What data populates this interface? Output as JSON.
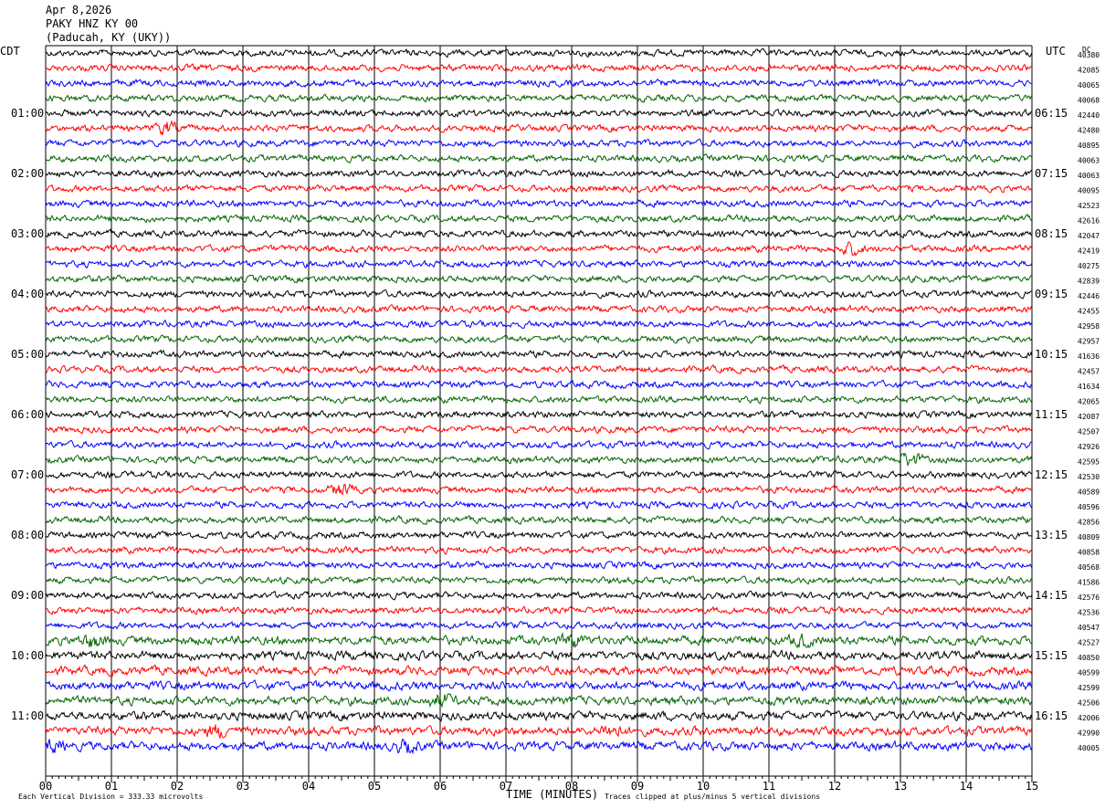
{
  "header": {
    "date": "Apr 8,2026",
    "station": "PAKY HNZ KY 00",
    "location": "(Paducah, KY (UKY))"
  },
  "chart_data": {
    "type": "line",
    "title": "Apr 8,2026",
    "left_timezone": "CDT",
    "right_timezone": "UTC",
    "dc_label": "DC",
    "xlabel": "TIME (MINUTES)",
    "x_ticks": [
      "00",
      "01",
      "02",
      "03",
      "04",
      "05",
      "06",
      "07",
      "08",
      "09",
      "10",
      "11",
      "12",
      "13",
      "14",
      "15"
    ],
    "xlim": [
      0,
      15
    ],
    "trace_colors": [
      "#000000",
      "#ff0000",
      "#0000ff",
      "#006400"
    ],
    "left_hour_labels": [
      "01:00",
      "02:00",
      "03:00",
      "04:00",
      "05:00",
      "06:00",
      "07:00",
      "08:00",
      "09:00",
      "10:00",
      "11:00"
    ],
    "right_hour_labels": [
      "06:15",
      "07:15",
      "08:15",
      "09:15",
      "10:15",
      "11:15",
      "12:15",
      "13:15",
      "14:15",
      "15:15",
      "16:15"
    ],
    "dc_offsets": [
      "40380",
      "42085",
      "40065",
      "40068",
      "42440",
      "42480",
      "40895",
      "40063",
      "40063",
      "40095",
      "42523",
      "42616",
      "42047",
      "42419",
      "40275",
      "42839",
      "42446",
      "42455",
      "42958",
      "42957",
      "41636",
      "42457",
      "41634",
      "42065",
      "42087",
      "42507",
      "42926",
      "42595",
      "42530",
      "40589",
      "40596",
      "42856",
      "40809",
      "40858",
      "40568",
      "41586",
      "42576",
      "42536",
      "40547",
      "42527",
      "40850",
      "40599",
      "42599",
      "42506",
      "42006",
      "42990",
      "40005"
    ],
    "footer_left": "Each Vertical Division =  333.33 microvolts",
    "footer_right": "Traces clipped at plus/minus 5 vertical divisions"
  }
}
